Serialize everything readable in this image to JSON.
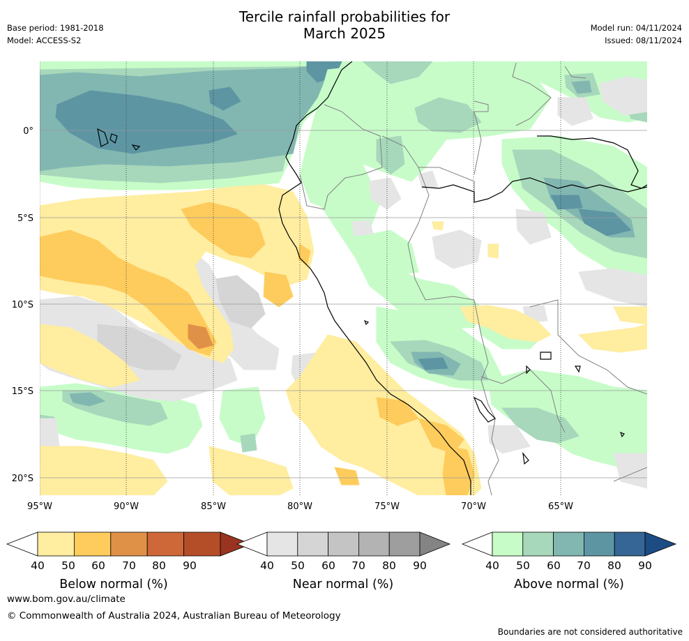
{
  "title": {
    "line1": "Tercile rainfall probabilities for",
    "line2": "March 2025"
  },
  "meta": {
    "base_period": "Base period: 1981-2018",
    "model": "Model: ACCESS-S2",
    "model_run": "Model run: 04/11/2024",
    "issued": "Issued: 08/11/2024"
  },
  "map": {
    "lat_labels": [
      "0°",
      "5°S",
      "10°S",
      "15°S",
      "20°S"
    ],
    "lon_labels": [
      "95°W",
      "90°W",
      "85°W",
      "80°W",
      "75°W",
      "70°W",
      "65°W"
    ],
    "colors": {
      "ocean_base": "#ffffff",
      "land_base": "#ffffff",
      "below": [
        "#ffeda0",
        "#fecc5c",
        "#e09148",
        "#cf6838",
        "#b44e28",
        "#9a3420"
      ],
      "near": [
        "#e5e5e5",
        "#d5d5d5",
        "#c4c4c4",
        "#b3b3b3",
        "#9e9e9e",
        "#848484"
      ],
      "above": [
        "#c7fcc9",
        "#a7d8bb",
        "#82b7b1",
        "#5d95a3",
        "#356695",
        "#1c4c83"
      ],
      "coastline": "#000000",
      "borders": "#808080",
      "gridlines": "#9a9a9a"
    }
  },
  "colorbars": [
    {
      "label": "Below normal (%)",
      "ticks": [
        "40",
        "50",
        "60",
        "70",
        "80",
        "90"
      ]
    },
    {
      "label": "Near normal (%)",
      "ticks": [
        "40",
        "50",
        "60",
        "70",
        "80",
        "90"
      ]
    },
    {
      "label": "Above normal (%)",
      "ticks": [
        "40",
        "50",
        "60",
        "70",
        "80",
        "90"
      ]
    }
  ],
  "footer": {
    "website": "www.bom.gov.au/climate",
    "copyright": "© Commonwealth of Australia 2024, Australian Bureau of Meteorology",
    "disclaimer": "Boundaries are not considered authoritative"
  }
}
